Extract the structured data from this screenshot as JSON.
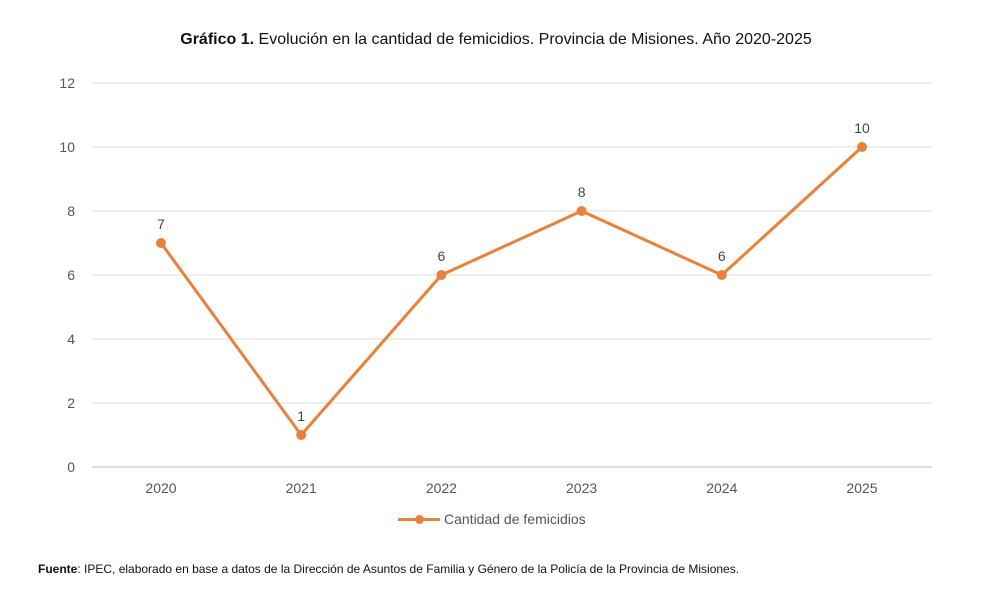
{
  "chart_data": {
    "type": "line",
    "title_bold": "Gráfico 1.",
    "title": "Evolución en la cantidad de femicidios. Provincia de Misiones. Año 2020-2025",
    "categories": [
      "2020",
      "2021",
      "2022",
      "2023",
      "2024",
      "2025"
    ],
    "series": [
      {
        "name": "Cantidad de femicidios",
        "values": [
          7,
          1,
          6,
          8,
          6,
          10
        ],
        "color": "#E8823A"
      }
    ],
    "ylim": [
      0,
      12
    ],
    "yticks": [
      "0",
      "2",
      "4",
      "6",
      "8",
      "10",
      "12"
    ],
    "grid": true,
    "legend": "bottom",
    "xlabel": "",
    "ylabel": ""
  },
  "source_label": "Fuente",
  "source_text": ": IPEC, elaborado en base a datos de la Dirección de Asuntos de Familia y Género de la Policía de la Provincia de Misiones."
}
